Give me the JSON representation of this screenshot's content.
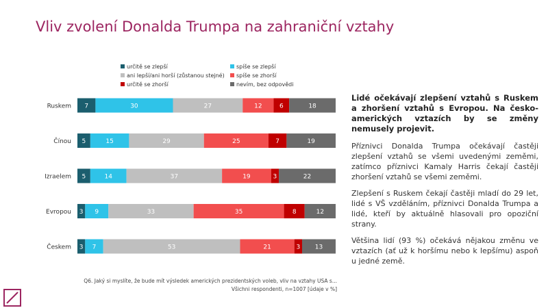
{
  "chart_data": {
    "type": "stacked-bar-horizontal",
    "title": "Vliv zvolení Donalda Trumpa na zahraniční vztahy",
    "categories": [
      "Ruskem",
      "Čínou",
      "Izraelem",
      "Evropou",
      "Českem"
    ],
    "series": [
      {
        "name": "určitě se zlepší",
        "color": "#1b5e6e",
        "values": [
          7,
          5,
          5,
          3,
          3
        ]
      },
      {
        "name": "spíše se zlepší",
        "color": "#2fc3e8",
        "values": [
          30,
          15,
          14,
          9,
          7
        ]
      },
      {
        "name": "ani lepší/ani horší (zůstanou stejné)",
        "color": "#bfbfbf",
        "values": [
          27,
          29,
          37,
          33,
          53
        ]
      },
      {
        "name": "spíše se zhorší",
        "color": "#f24e4e",
        "values": [
          12,
          25,
          19,
          35,
          21
        ]
      },
      {
        "name": "určitě se zhorší",
        "color": "#c00000",
        "values": [
          6,
          7,
          3,
          8,
          3
        ]
      },
      {
        "name": "nevím, bez odpovědi",
        "color": "#6b6b6b",
        "values": [
          18,
          19,
          22,
          12,
          13
        ]
      }
    ],
    "xlim": [
      0,
      100
    ],
    "notes": [
      "Q6. Jaký si myslíte, že bude mít výsledek amerických prezidentských voleb, vliv na vztahy USA s...",
      "Všichni respondenti, n=1007 [údaje v %]"
    ]
  },
  "text_panel": {
    "heading": "Lidé očekávají zlepšení vztahů s Ruskem a zhoršení vztahů s Evropou. Na česko-amerických vztazích by se změny nemusely projevit.",
    "paragraphs": [
      "Příznivci Donalda Trumpa očekávají častěji zlepšení vztahů se všemi uvedenými zeměmi, zatímco příznivci Kamaly Harris čekají častěji zhoršení vztahů se všemi zeměmi.",
      "Zlepšení s Ruskem čekají častěji mladí do 29 let, lidé s VŠ vzděláním, příznivci Donalda Trumpa a lidé, kteří by aktuálně hlasovali pro opoziční strany.",
      "Většina lidí (93 %) očekává nějakou změnu ve vztazích (ať už k horšímu nebo k lepšímu) aspoň u jedné země."
    ]
  }
}
